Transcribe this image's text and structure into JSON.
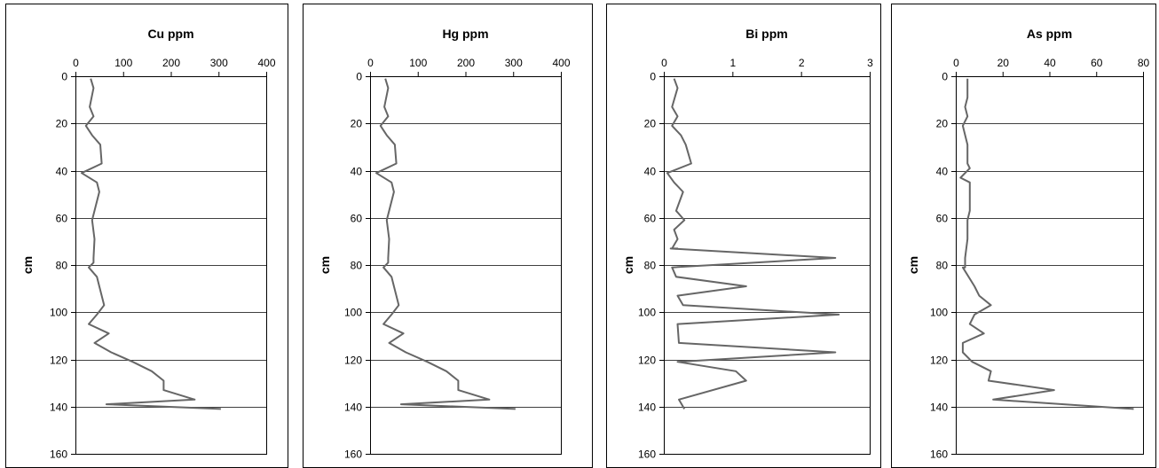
{
  "style": {
    "line_color": "#666666",
    "frame_color": "#000000",
    "background": "#ffffff"
  },
  "chart_data": [
    {
      "type": "line",
      "title": "Cu ppm",
      "ylabel": "cm",
      "xlim": [
        0,
        400
      ],
      "ylim": [
        0,
        160
      ],
      "y_inverted": true,
      "x_axis_position": "top",
      "xticks": [
        "0",
        "100",
        "200",
        "300",
        "400"
      ],
      "yticks": [
        "0",
        "20",
        "40",
        "60",
        "80",
        "100",
        "120",
        "140",
        "160"
      ],
      "grid": "horizontal",
      "series": [
        {
          "x": [
            32,
            38,
            30,
            38,
            22,
            35,
            52,
            55,
            13,
            45,
            50,
            40,
            35,
            40,
            38,
            38,
            28,
            45,
            50,
            60,
            45,
            28,
            70,
            40,
            75,
            120,
            160,
            185,
            185,
            250,
            65,
            305
          ],
          "y": [
            1,
            5,
            13,
            17,
            21,
            25,
            29,
            37,
            41,
            45,
            49,
            57,
            61,
            69,
            77,
            79,
            81,
            85,
            89,
            97,
            101,
            105,
            109,
            113,
            117,
            121,
            125,
            129,
            133,
            137,
            139,
            141
          ]
        }
      ]
    },
    {
      "type": "line",
      "title": "Hg ppm",
      "ylabel": "cm",
      "xlim": [
        0,
        400
      ],
      "ylim": [
        0,
        160
      ],
      "y_inverted": true,
      "x_axis_position": "top",
      "xticks": [
        "0",
        "100",
        "200",
        "300",
        "400"
      ],
      "yticks": [
        "0",
        "20",
        "40",
        "60",
        "80",
        "100",
        "120",
        "140",
        "160"
      ],
      "grid": "horizontal",
      "series": [
        {
          "x": [
            32,
            38,
            30,
            38,
            22,
            35,
            52,
            55,
            13,
            45,
            50,
            40,
            35,
            40,
            38,
            38,
            28,
            45,
            50,
            60,
            45,
            28,
            70,
            40,
            75,
            120,
            160,
            185,
            185,
            250,
            65,
            305
          ],
          "y": [
            1,
            5,
            13,
            17,
            21,
            25,
            29,
            37,
            41,
            45,
            49,
            57,
            61,
            69,
            77,
            79,
            81,
            85,
            89,
            97,
            101,
            105,
            109,
            113,
            117,
            121,
            125,
            129,
            133,
            137,
            139,
            141
          ]
        }
      ]
    },
    {
      "type": "line",
      "title": "Bi ppm",
      "ylabel": "cm",
      "xlim": [
        0,
        3
      ],
      "ylim": [
        0,
        160
      ],
      "y_inverted": true,
      "x_axis_position": "top",
      "xticks": [
        "0",
        "1",
        "2",
        "3"
      ],
      "yticks": [
        "0",
        "20",
        "40",
        "60",
        "80",
        "100",
        "120",
        "140",
        "160"
      ],
      "grid": "horizontal",
      "series": [
        {
          "x": [
            0.15,
            0.2,
            0.12,
            0.2,
            0.12,
            0.25,
            0.32,
            0.4,
            0.05,
            0.15,
            0.28,
            0.18,
            0.3,
            0.15,
            0.2,
            0.12,
            0.2,
            0.1,
            2.5,
            0.12,
            0.18,
            1.2,
            0.2,
            0.28,
            2.55,
            0.2,
            0.22,
            2.5,
            0.2,
            1.05,
            1.2,
            0.22,
            0.3
          ],
          "y": [
            1,
            5,
            13,
            17,
            21,
            25,
            29,
            37,
            41,
            45,
            49,
            57,
            61,
            65,
            69,
            73,
            73,
            73,
            77,
            81,
            85,
            89,
            93,
            97,
            101,
            105,
            113,
            117,
            121,
            125,
            129,
            137,
            141
          ]
        }
      ]
    },
    {
      "type": "line",
      "title": "As ppm",
      "ylabel": "cm",
      "xlim": [
        0,
        80
      ],
      "ylim": [
        0,
        160
      ],
      "y_inverted": true,
      "x_axis_position": "top",
      "xticks": [
        "0",
        "20",
        "40",
        "60",
        "80"
      ],
      "yticks": [
        "0",
        "20",
        "40",
        "60",
        "80",
        "100",
        "120",
        "140",
        "160"
      ],
      "grid": "horizontal",
      "series": [
        {
          "x": [
            5,
            5,
            4,
            5,
            3,
            5,
            5,
            5,
            6,
            2,
            6,
            6,
            5,
            5,
            4,
            4,
            3,
            8,
            10,
            15,
            8,
            6,
            12,
            3,
            3,
            7,
            15,
            14,
            42,
            16,
            76
          ],
          "y": [
            1,
            9,
            13,
            17,
            21,
            29,
            33,
            37,
            39,
            43,
            45,
            57,
            61,
            69,
            77,
            81,
            81,
            89,
            93,
            97,
            101,
            105,
            109,
            113,
            117,
            121,
            125,
            129,
            133,
            137,
            141
          ]
        }
      ]
    }
  ]
}
